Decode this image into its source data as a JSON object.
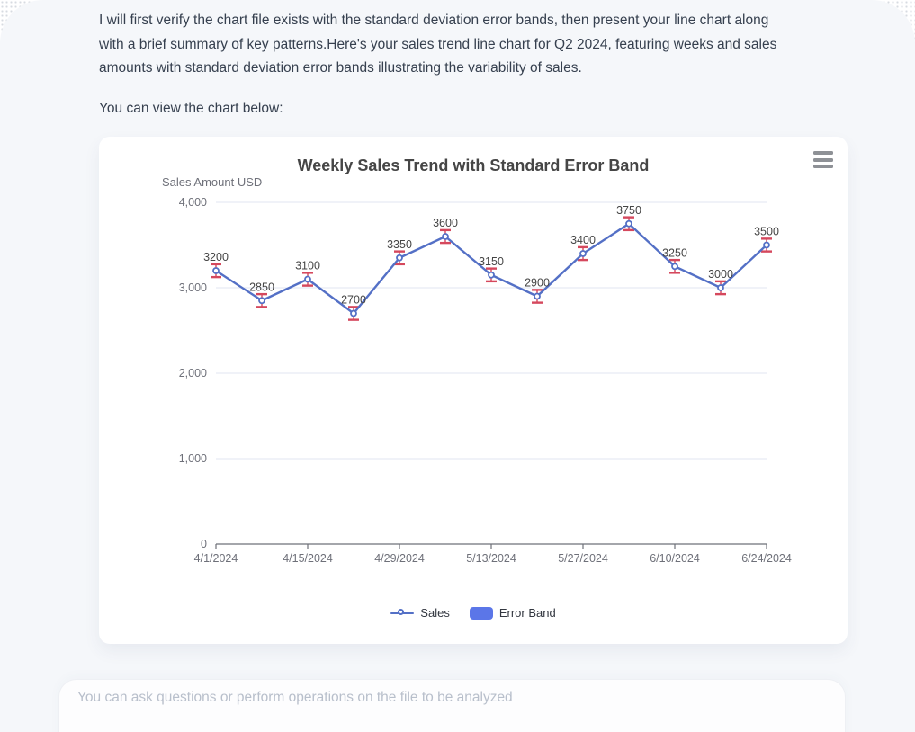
{
  "message": {
    "lines": [
      "I will first verify the chart file exists with the standard deviation error bands, then present your line chart along",
      "with a brief summary of key patterns.Here's your sales trend line chart for Q2 2024, featuring weeks and sales",
      "amounts with standard deviation error bands illustrating the variability of sales."
    ],
    "view_prompt": "You can view the chart below:"
  },
  "chart_data": {
    "type": "line",
    "title": "Weekly Sales Trend with Standard Error Band",
    "ylabel": "Sales Amount USD",
    "xlabel": "",
    "x": [
      "4/1/2024",
      "4/8/2024",
      "4/15/2024",
      "4/22/2024",
      "4/29/2024",
      "5/6/2024",
      "5/13/2024",
      "5/20/2024",
      "5/27/2024",
      "6/3/2024",
      "6/10/2024",
      "6/17/2024",
      "6/24/2024"
    ],
    "x_tick_labels": [
      "4/1/2024",
      "4/15/2024",
      "4/29/2024",
      "5/13/2024",
      "5/27/2024",
      "6/10/2024",
      "6/24/2024"
    ],
    "x_tick_indices": [
      0,
      2,
      4,
      6,
      8,
      10,
      12
    ],
    "series": [
      {
        "name": "Sales",
        "values": [
          3200,
          2850,
          3100,
          2700,
          3350,
          3600,
          3150,
          2900,
          3400,
          3750,
          3250,
          3000,
          3500
        ]
      }
    ],
    "error_band": {
      "name": "Error Band",
      "plus_minus": 75
    },
    "ylim": [
      0,
      4000
    ],
    "yticks": [
      {
        "value": 0,
        "label": "0"
      },
      {
        "value": 1000,
        "label": "1,000"
      },
      {
        "value": 2000,
        "label": "2,000"
      },
      {
        "value": 3000,
        "label": "3,000"
      },
      {
        "value": 4000,
        "label": "4,000"
      }
    ],
    "grid": true,
    "legend_position": "bottom",
    "legend": [
      {
        "label": "Sales",
        "type": "line"
      },
      {
        "label": "Error Band",
        "type": "band"
      }
    ],
    "colors": {
      "line": "#5470C6",
      "error": "#D5485D",
      "grid": "#E0E6F1",
      "axis": "#6E7079",
      "data_label": "#454545",
      "legend_band": "#5B76E8"
    }
  },
  "composer": {
    "placeholder": "You can ask questions or perform operations on the file to be analyzed"
  }
}
